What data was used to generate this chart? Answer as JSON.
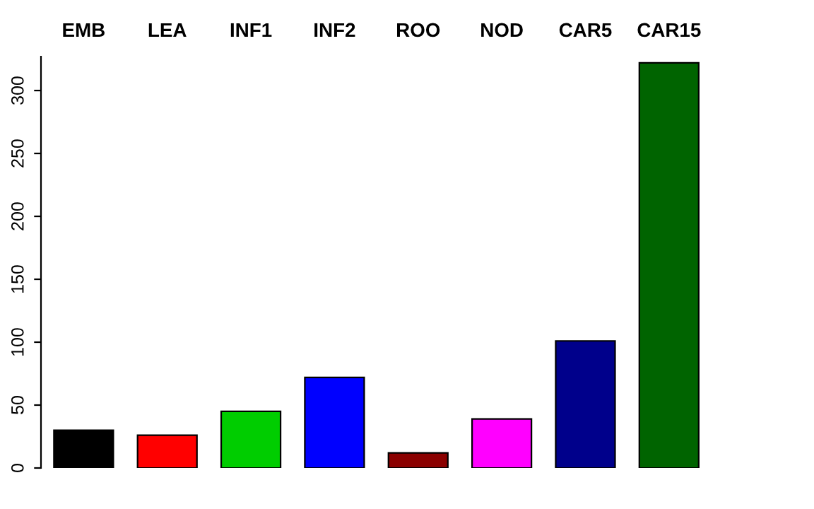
{
  "chart_data": {
    "type": "bar",
    "categories": [
      "EMB",
      "LEA",
      "INF1",
      "INF2",
      "ROO",
      "NOD",
      "CAR5",
      "CAR15"
    ],
    "values": [
      30,
      26,
      45,
      72,
      12,
      39,
      101,
      322
    ],
    "colors": [
      "#000000",
      "#ff0000",
      "#00cd00",
      "#0000ff",
      "#8b0000",
      "#ff00ff",
      "#00008b",
      "#006400"
    ],
    "ylim": [
      0,
      327
    ],
    "yticks": [
      0,
      50,
      100,
      150,
      200,
      250,
      300
    ],
    "grid": false,
    "legend": false
  }
}
